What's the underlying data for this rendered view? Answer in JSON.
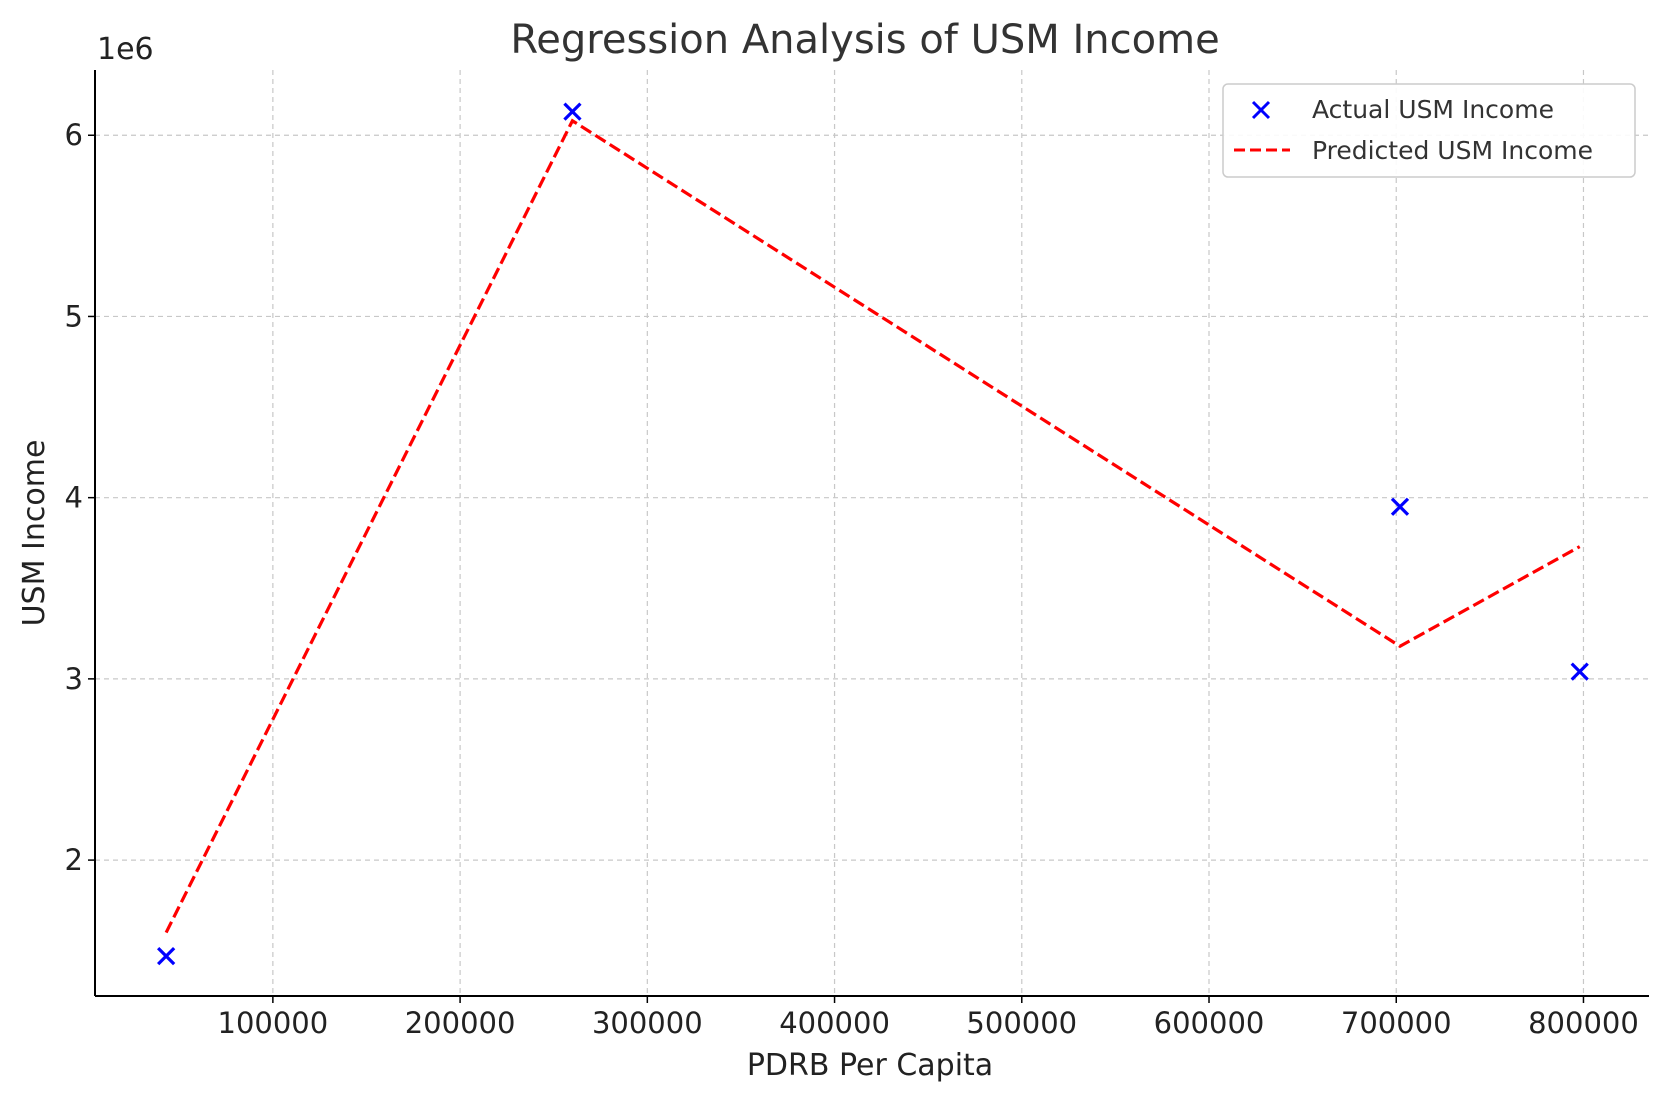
{
  "chart_data": {
    "type": "scatter",
    "title": "Regression Analysis of USM Income",
    "xlabel": "PDRB Per Capita",
    "ylabel": "USM Income",
    "y_offset_label": "1e6",
    "xlim": [
      5000,
      835000
    ],
    "ylim": [
      1250000,
      6360000
    ],
    "x_ticks": [
      100000,
      200000,
      300000,
      400000,
      500000,
      600000,
      700000,
      800000
    ],
    "x_tick_labels": [
      "100000",
      "200000",
      "300000",
      "400000",
      "500000",
      "600000",
      "700000",
      "800000"
    ],
    "y_ticks": [
      2000000,
      3000000,
      4000000,
      5000000,
      6000000
    ],
    "y_tick_labels": [
      "2",
      "3",
      "4",
      "5",
      "6"
    ],
    "grid": true,
    "legend_position": "top-right",
    "series": [
      {
        "name": "Actual USM Income",
        "kind": "scatter",
        "marker": "x",
        "color": "#0000ff",
        "points": [
          {
            "x": 43000,
            "y": 1470000
          },
          {
            "x": 260000,
            "y": 6130000
          },
          {
            "x": 702000,
            "y": 3950000
          },
          {
            "x": 798000,
            "y": 3040000
          }
        ]
      },
      {
        "name": "Predicted USM Income",
        "kind": "line",
        "style": "dashed",
        "color": "#ff0000",
        "points": [
          {
            "x": 43000,
            "y": 1600000
          },
          {
            "x": 260000,
            "y": 6080000
          },
          {
            "x": 702000,
            "y": 3180000
          },
          {
            "x": 798000,
            "y": 3730000
          }
        ]
      }
    ]
  }
}
